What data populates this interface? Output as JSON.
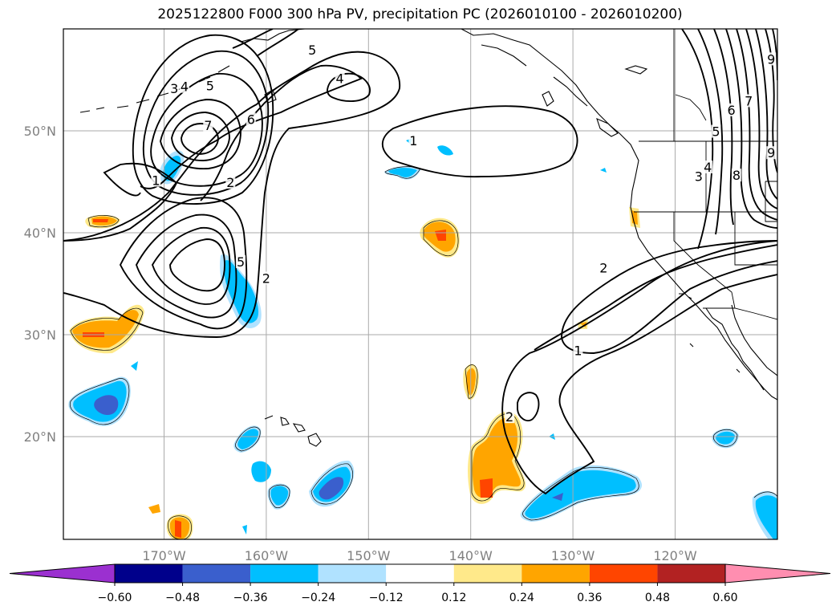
{
  "chart_data": {
    "type": "map-contour",
    "title": "2025122800 F000 300 hPa PV, precipitation PC (2026010100 - 2026010200)",
    "lon_range": [
      -180,
      -110
    ],
    "lat_range": [
      10,
      60
    ],
    "lon_ticks": [
      {
        "lon": -170,
        "label": "170°W"
      },
      {
        "lon": -160,
        "label": "160°W"
      },
      {
        "lon": -150,
        "label": "150°W"
      },
      {
        "lon": -140,
        "label": "140°W"
      },
      {
        "lon": -130,
        "label": "130°W"
      },
      {
        "lon": -120,
        "label": "120°W"
      }
    ],
    "lat_ticks": [
      {
        "lat": 20,
        "label": "20°N"
      },
      {
        "lat": 30,
        "label": "30°N"
      },
      {
        "lat": 40,
        "label": "40°N"
      },
      {
        "lat": 50,
        "label": "50°N"
      }
    ],
    "grid": true,
    "colorbar": {
      "boundaries": [
        -0.6,
        -0.48,
        -0.36,
        -0.24,
        -0.12,
        0.12,
        0.24,
        0.36,
        0.48,
        0.6
      ],
      "tick_labels": [
        "−0.60",
        "−0.48",
        "−0.36",
        "−0.24",
        "−0.12",
        "0.12",
        "0.24",
        "0.36",
        "0.48",
        "0.60"
      ],
      "colors": [
        "#9b30d0",
        "#00008b",
        "#3a5fcd",
        "#00bfff",
        "#b0e2ff",
        "#ffffff",
        "#ffe98a",
        "#ffa500",
        "#ff4500",
        "#b22222",
        "#ff8eb0"
      ],
      "extend": "both"
    },
    "pv_contour_labels": [
      {
        "value": "1",
        "lon": -170.8,
        "lat": 45.0
      },
      {
        "value": "1",
        "lon": -145.6,
        "lat": 48.9
      },
      {
        "value": "1",
        "lon": -129.5,
        "lat": 28.3
      },
      {
        "value": "2",
        "lon": -163.5,
        "lat": 44.8
      },
      {
        "value": "2",
        "lon": -160.0,
        "lat": 35.4
      },
      {
        "value": "2",
        "lon": -136.2,
        "lat": 21.8
      },
      {
        "value": "2",
        "lon": -127.0,
        "lat": 36.4
      },
      {
        "value": "3",
        "lon": -169.0,
        "lat": 54.0
      },
      {
        "value": "4",
        "lon": -168.0,
        "lat": 54.2
      },
      {
        "value": "5",
        "lon": -165.5,
        "lat": 54.3
      },
      {
        "value": "5",
        "lon": -162.5,
        "lat": 37.0
      },
      {
        "value": "6",
        "lon": -161.5,
        "lat": 51.0
      },
      {
        "value": "7",
        "lon": -165.7,
        "lat": 50.4
      },
      {
        "value": "3",
        "lon": -117.7,
        "lat": 45.4
      },
      {
        "value": "4",
        "lon": -116.8,
        "lat": 46.3
      },
      {
        "value": "5",
        "lon": -116.0,
        "lat": 49.8
      },
      {
        "value": "6",
        "lon": -114.5,
        "lat": 51.9
      },
      {
        "value": "7",
        "lon": -112.8,
        "lat": 52.8
      },
      {
        "value": "8",
        "lon": -114.0,
        "lat": 45.5
      },
      {
        "value": "9",
        "lon": -110.6,
        "lat": 47.7
      },
      {
        "value": "9",
        "lon": -110.6,
        "lat": 56.9
      },
      {
        "value": "5",
        "lon": -155.5,
        "lat": 57.8
      },
      {
        "value": "4",
        "lon": -152.8,
        "lat": 55.0
      }
    ]
  }
}
